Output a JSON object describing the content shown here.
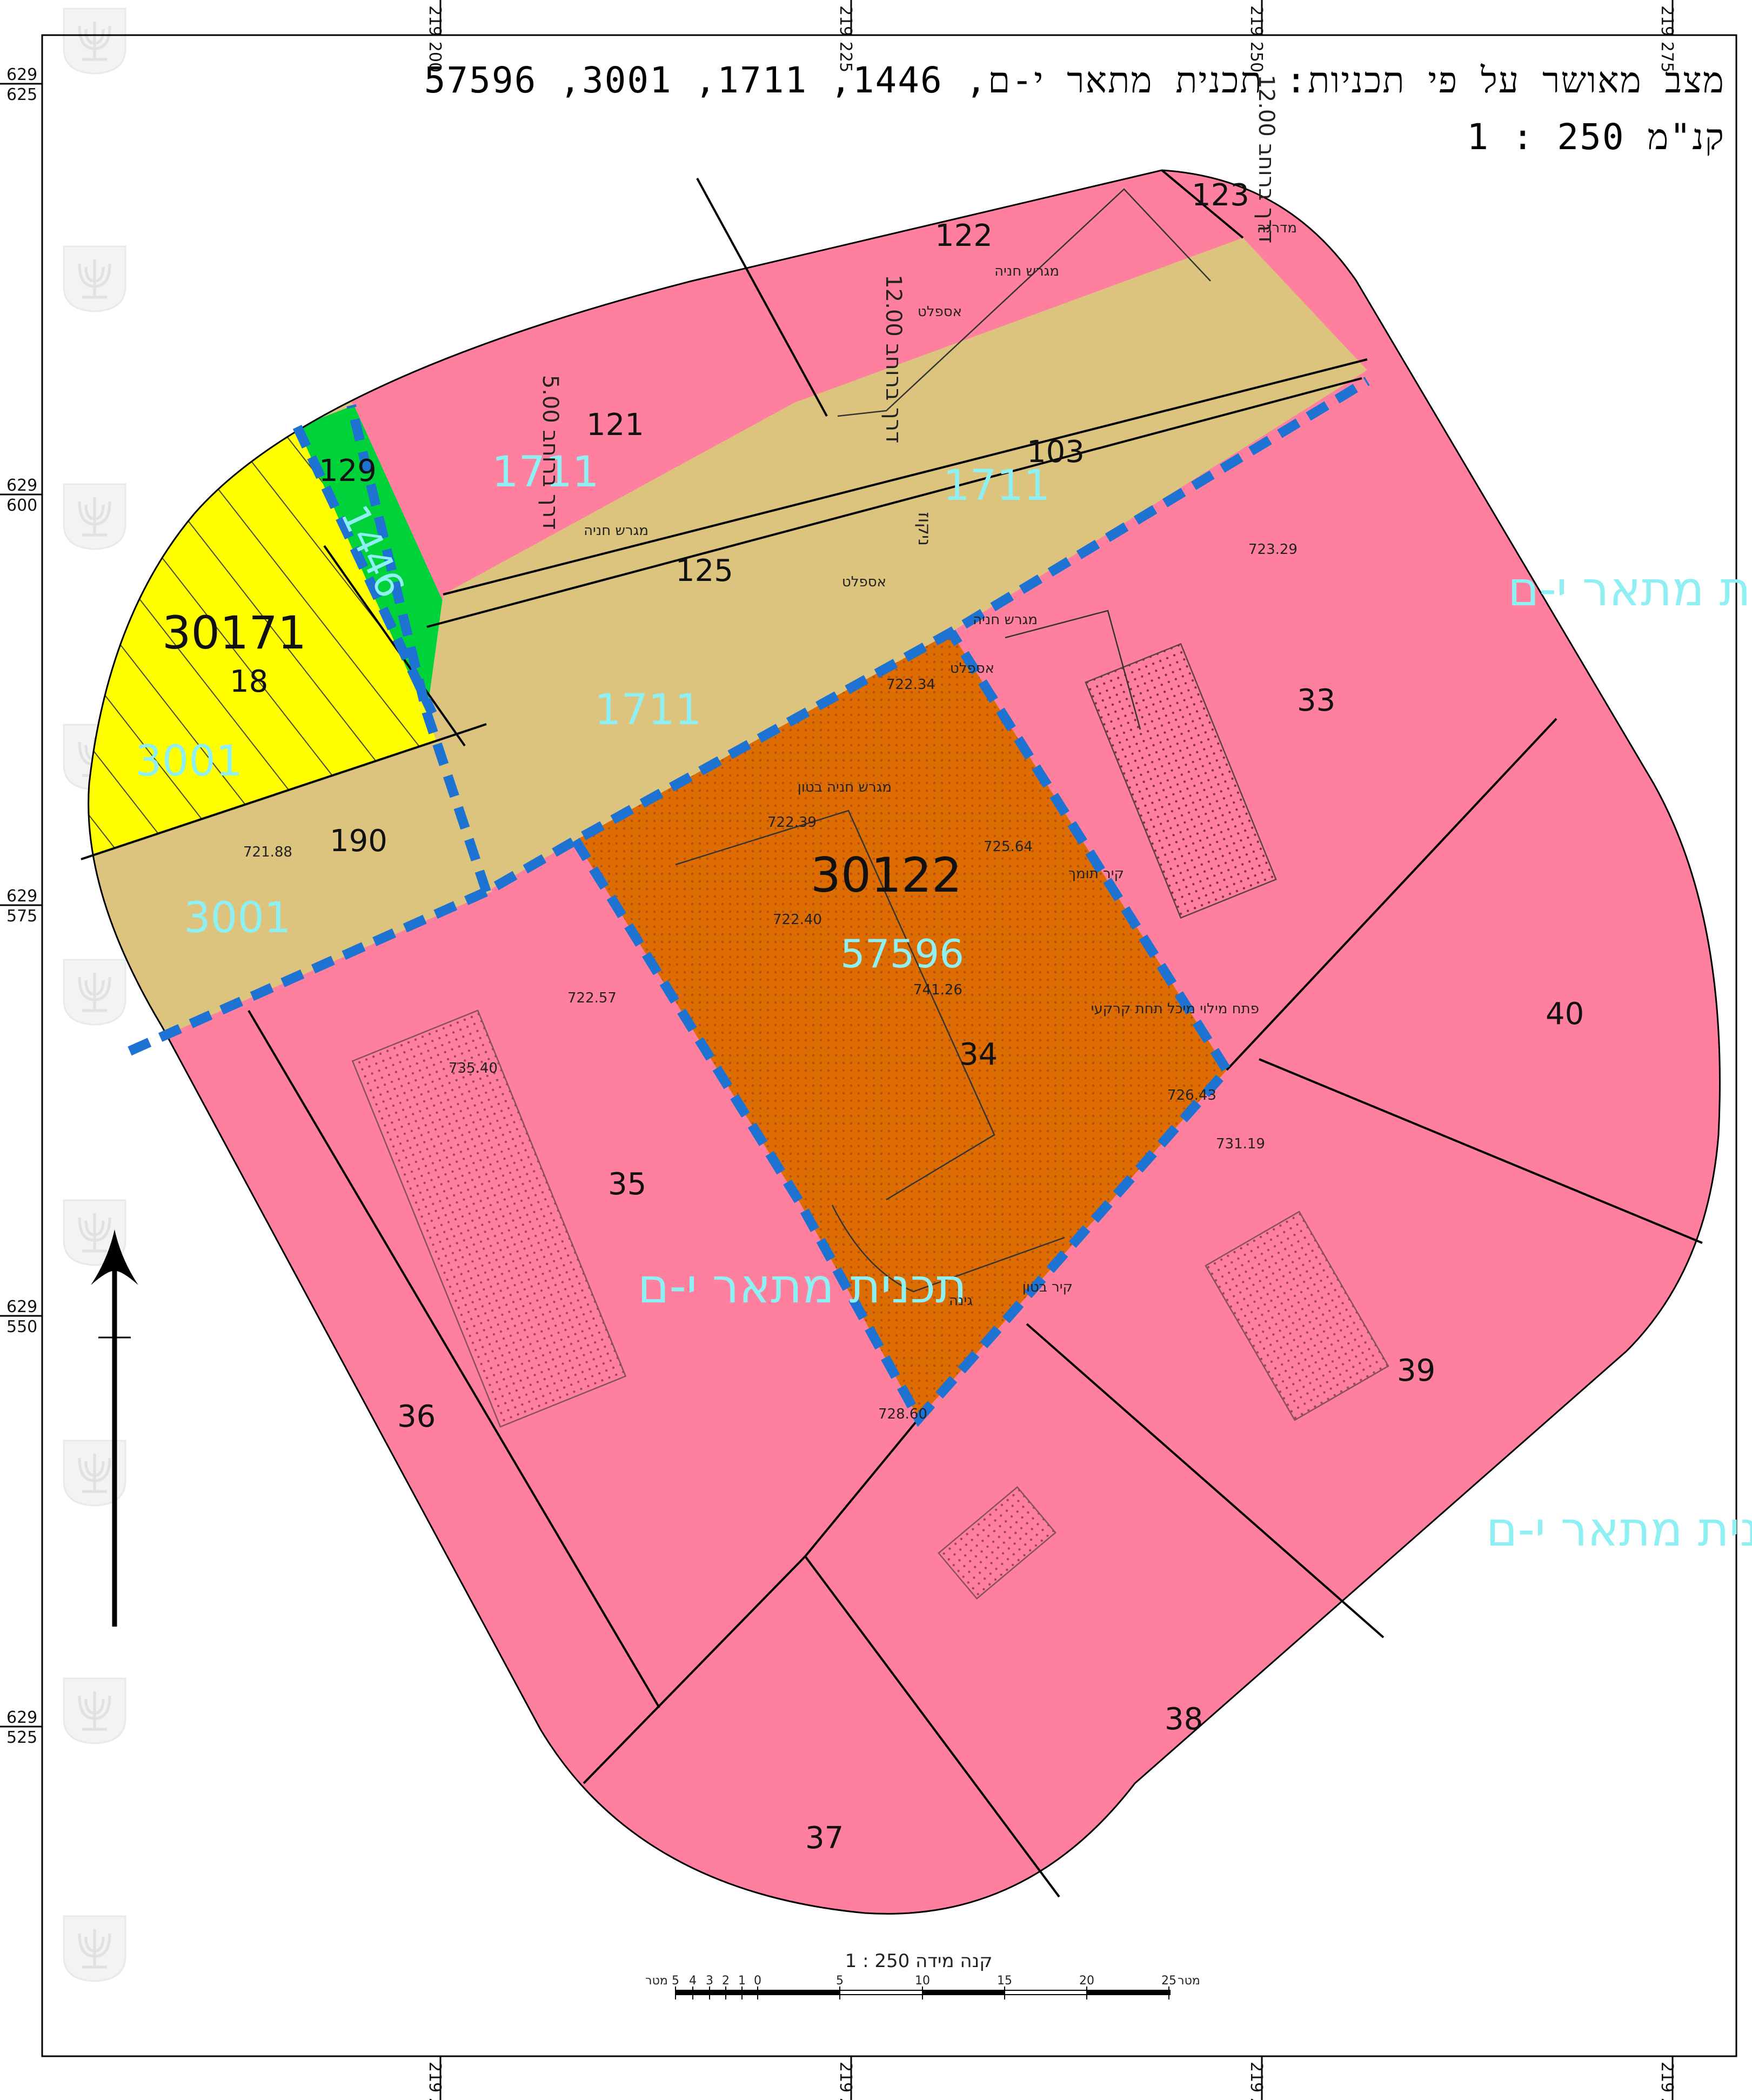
{
  "title": {
    "line1": "מצב מאושר על פי תכניות: תכנית מתאר י-ם, 1446, 1711, 3001, 57596",
    "line2": "קנ\"מ 250 : 1"
  },
  "grid": {
    "top": [
      "219 200",
      "219 225",
      "219 250",
      "219 275"
    ],
    "bottom": [
      "219 200",
      "219 225",
      "219 250",
      "219 275"
    ],
    "left": [
      {
        "a": "629",
        "b": "625"
      },
      {
        "a": "629",
        "b": "600"
      },
      {
        "a": "629",
        "b": "575"
      },
      {
        "a": "629",
        "b": "550"
      },
      {
        "a": "629",
        "b": "525"
      }
    ]
  },
  "parcels": {
    "p122": "122",
    "p123": "123",
    "p121": "121",
    "p103": "103",
    "p129": "129",
    "p125": "125",
    "p18": "18",
    "p190": "190",
    "p33": "33",
    "p34": "34",
    "p35": "35",
    "p36": "36",
    "p37": "37",
    "p38": "38",
    "p39": "39",
    "p40": "40"
  },
  "blocks": {
    "b30171": "30171",
    "b30122": "30122"
  },
  "plans": {
    "p1711a": "1711",
    "p1711b": "1711",
    "p1711c": "1711",
    "p1446": "1446",
    "p3001a": "3001",
    "p3001b": "3001",
    "p57596": "57596",
    "jerusalem": "תכנית מתאר י-ם"
  },
  "labels": {
    "parking_asphalt": "מגרש חניה",
    "asphalt": "אספלט",
    "road_width_12": "דרך ברוחב 12.00",
    "road_width_5": "דרך ברוחב 5.00",
    "drainage": "ניקוז",
    "covered_parking": "מגרש חניה בטון",
    "stairs": "מדרגה",
    "garden": "גינה",
    "concrete_wall": "קיר בטון",
    "support_wall": "קיר תומך",
    "under_tank": "פתח מילוי מיכל תחת קרקעי",
    "v1": "722.34",
    "v2": "722.39",
    "v3": "725.64",
    "v4": "722.40",
    "v5": "741.26",
    "v6": "726.43",
    "v7": "731.19",
    "v8": "728.60",
    "v9": "735.40",
    "v10": "722.57",
    "v11": "723.29",
    "v12": "721.88"
  },
  "scale_bar": {
    "caption": "קנה מידה 250 : 1",
    "ticks": [
      "5",
      "4",
      "3",
      "2",
      "1",
      "0",
      "5",
      "10",
      "15",
      "20",
      "25"
    ],
    "unit_left": "מטר",
    "unit_right": "מטר"
  },
  "colors": {
    "residential": "#ff7f9f",
    "road": "#dcc47e",
    "yellow": "#ffff00",
    "green": "#00d23a",
    "orange": "#dd6d00",
    "plan_boundary": "#1e73d2",
    "plan_text": "#8ef0f2"
  },
  "icons": [
    "north-arrow-icon",
    "menorah-emblem-icon"
  ]
}
